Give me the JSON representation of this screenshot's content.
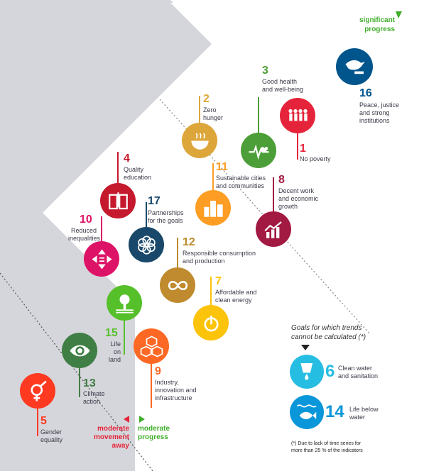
{
  "corner": {
    "significant": "significant",
    "progress": "progress"
  },
  "goals": [
    {
      "num": "16",
      "text": [
        "Peace, justice",
        "and strong",
        "institutions"
      ],
      "color": "#00558d",
      "icon": "dove-gavel-icon"
    },
    {
      "num": "3",
      "text": [
        "Good health",
        "and well-being"
      ],
      "color": "#4c9f38",
      "icon": "heartbeat-icon"
    },
    {
      "num": "1",
      "text": [
        "No poverty"
      ],
      "color": "#e5243b",
      "icon": "people-icon"
    },
    {
      "num": "2",
      "text": [
        "Zero",
        "hunger"
      ],
      "color": "#dda63a",
      "icon": "bowl-icon"
    },
    {
      "num": "11",
      "text": [
        "Sustainable cities",
        "and communities"
      ],
      "color": "#fd9d24",
      "icon": "city-icon"
    },
    {
      "num": "8",
      "text": [
        "Decent work",
        "and economic",
        "growth"
      ],
      "color": "#a21942",
      "icon": "growth-chart-icon"
    },
    {
      "num": "4",
      "text": [
        "Quality",
        "education"
      ],
      "color": "#c5192d",
      "icon": "book-icon"
    },
    {
      "num": "17",
      "text": [
        "Partnerships",
        "for the goals"
      ],
      "color": "#19486a",
      "icon": "flower-icon"
    },
    {
      "num": "10",
      "text": [
        "Reduced",
        "inequalities"
      ],
      "color": "#dd1367",
      "icon": "equality-arrows-icon"
    },
    {
      "num": "12",
      "text": [
        "Responsible consumption",
        "and production"
      ],
      "color": "#bf8b2e",
      "icon": "infinity-icon"
    },
    {
      "num": "7",
      "text": [
        "Affordable and",
        "clean energy"
      ],
      "color": "#fcc30b",
      "icon": "power-icon"
    },
    {
      "num": "15",
      "text": [
        "Life on",
        "land"
      ],
      "color": "#56c02b",
      "icon": "tree-icon"
    },
    {
      "num": "9",
      "text": [
        "Industry,",
        "innovation and",
        "infrastructure"
      ],
      "color": "#fd6925",
      "icon": "cubes-icon"
    },
    {
      "num": "13",
      "text": [
        "Climate",
        "action"
      ],
      "color": "#3f7e44",
      "icon": "eye-globe-icon"
    },
    {
      "num": "5",
      "text": [
        "Gender",
        "equality"
      ],
      "color": "#ff3a21",
      "icon": "gender-icon"
    },
    {
      "num": "6",
      "text": [
        "Clean water",
        "and sanitation"
      ],
      "color": "#26bde2",
      "icon": "water-drop-icon"
    },
    {
      "num": "14",
      "text": [
        "Life below",
        "water"
      ],
      "color": "#0a97d9",
      "icon": "fish-icon"
    }
  ],
  "untracked": {
    "title_line1": "Goals for which trends",
    "title_line2": "cannot be calculated  (*)"
  },
  "footnote": {
    "line1": "(*)  Due to lack of time series for",
    "line2": "more than 25 % of the indicators"
  },
  "legend": {
    "moderate_away": [
      "moderate",
      "movement",
      "away"
    ],
    "moderate_progress": [
      "moderate",
      "progress"
    ],
    "away_color": "#e5243b",
    "progress_color": "#3fae2a"
  },
  "colors": {
    "band": "#d5d6db",
    "arrow": "#ffffff",
    "text": "#3b3b4a"
  }
}
